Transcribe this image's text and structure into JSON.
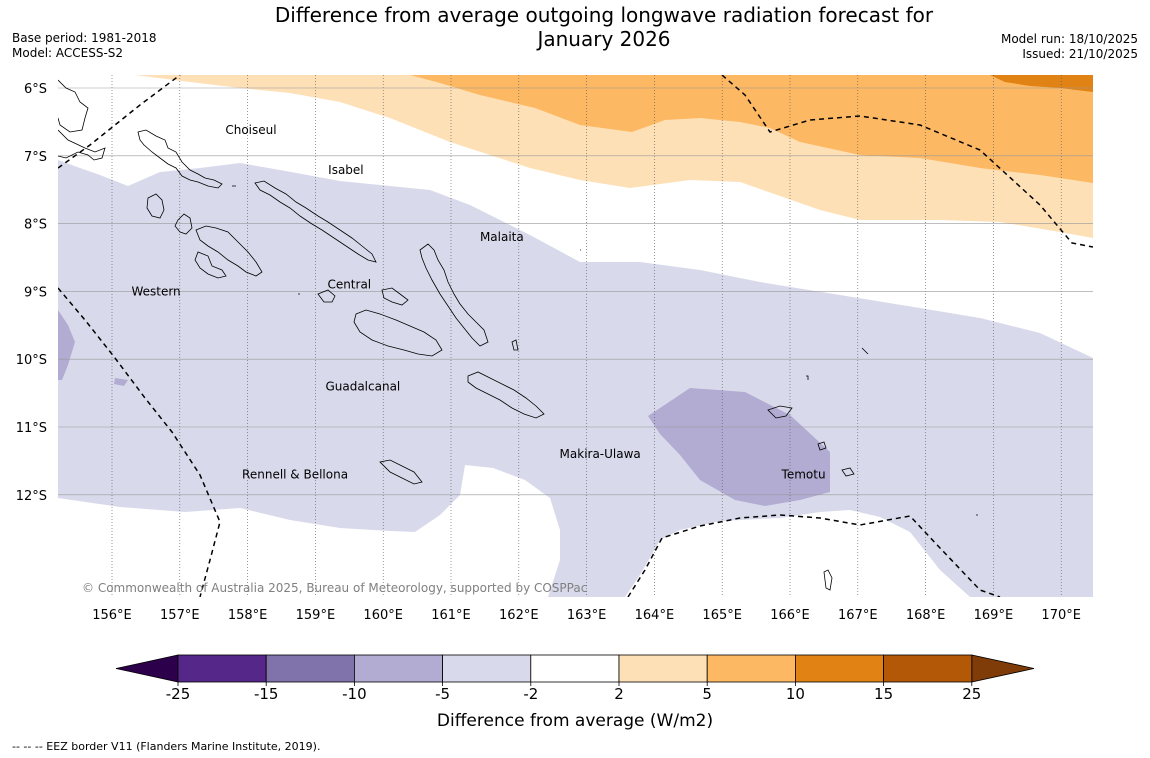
{
  "title": {
    "line1": "Difference from average outgoing longwave radiation forecast for",
    "line2": "January 2026"
  },
  "meta_left": {
    "base_period": "Base period: 1981-2018",
    "model": "Model: ACCESS-S2"
  },
  "meta_right": {
    "model_run": "Model run: 18/10/2025",
    "issued": "Issued: 21/10/2025"
  },
  "axes": {
    "lat_labels": [
      "6°S",
      "7°S",
      "8°S",
      "9°S",
      "10°S",
      "11°S",
      "12°S"
    ],
    "lon_labels": [
      "156°E",
      "157°E",
      "158°E",
      "159°E",
      "160°E",
      "161°E",
      "162°E",
      "163°E",
      "164°E",
      "165°E",
      "166°E",
      "167°E",
      "168°E",
      "169°E",
      "170°E"
    ]
  },
  "regions": [
    {
      "name": "Choiseul",
      "lon": 158.05,
      "lat": -6.62
    },
    {
      "name": "Isabel",
      "lon": 159.45,
      "lat": -7.21
    },
    {
      "name": "Malaita",
      "lon": 161.75,
      "lat": -8.2
    },
    {
      "name": "Western",
      "lon": 156.65,
      "lat": -9.0
    },
    {
      "name": "Central",
      "lon": 159.5,
      "lat": -8.9
    },
    {
      "name": "Guadalcanal",
      "lon": 159.7,
      "lat": -10.4
    },
    {
      "name": "Makira-Ulawa",
      "lon": 163.2,
      "lat": -11.4
    },
    {
      "name": "Rennell & Bellona",
      "lon": 158.7,
      "lat": -11.7
    },
    {
      "name": "Temotu",
      "lon": 166.2,
      "lat": -11.7
    }
  ],
  "copyright": "© Commonwealth of Australia 2025, Bureau of Meteorology, supported by COSPPac",
  "colorbar": {
    "ticks": [
      "-25",
      "-15",
      "-10",
      "-5",
      "-2",
      "2",
      "5",
      "10",
      "15",
      "25"
    ],
    "colors": [
      "#542788",
      "#8073ac",
      "#b2abd2",
      "#d8daeb",
      "#ffffff",
      "#fee0b6",
      "#fdb863",
      "#e08214",
      "#b35806"
    ],
    "under_color": "#2d004b",
    "over_color": "#7f3b08",
    "label": "Difference from average (W/m2)"
  },
  "footer": "--  --  -- EEZ border V11 (Flanders Marine Institute, 2019)."
}
